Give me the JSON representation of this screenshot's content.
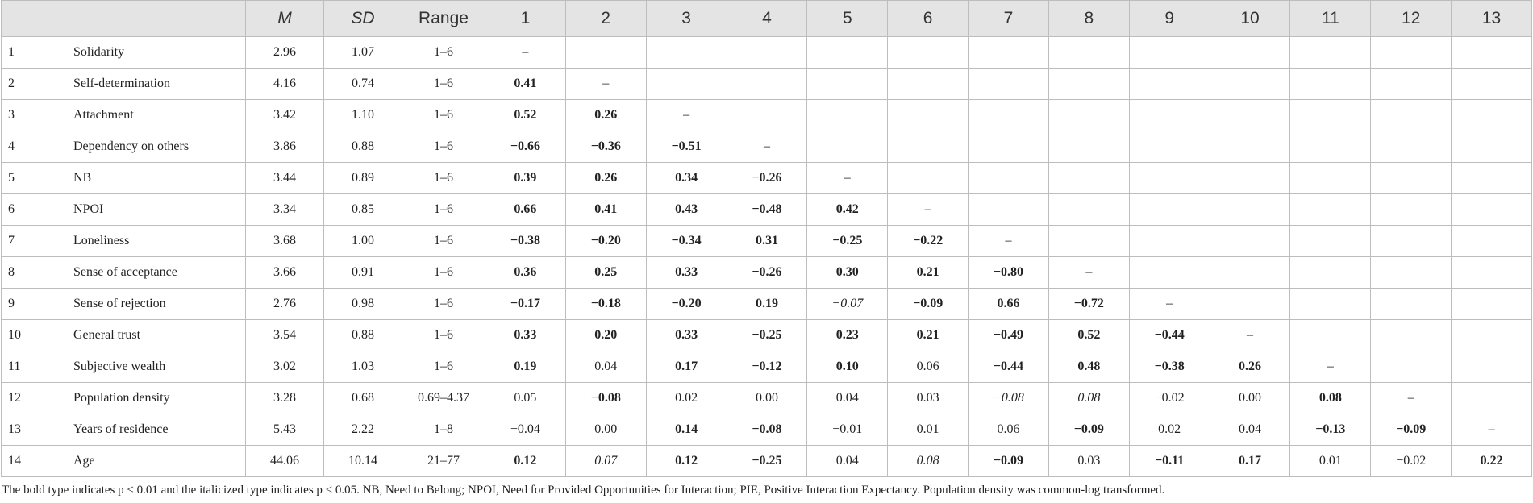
{
  "table": {
    "columns": [
      "M",
      "SD",
      "Range",
      "1",
      "2",
      "3",
      "4",
      "5",
      "6",
      "7",
      "8",
      "9",
      "10",
      "11",
      "12",
      "13"
    ],
    "italic_columns": [
      "M",
      "SD"
    ],
    "rows": [
      [
        "1",
        "Solidarity",
        "2.96",
        "1.07",
        "1–6",
        "–"
      ],
      [
        "2",
        "Self-determination",
        "4.16",
        "0.74",
        "1–6",
        {
          "text": "0.41",
          "style": "bold"
        },
        "–"
      ],
      [
        "3",
        "Attachment",
        "3.42",
        "1.10",
        "1–6",
        {
          "text": "0.52",
          "style": "bold"
        },
        {
          "text": "0.26",
          "style": "bold"
        },
        "–"
      ],
      [
        "4",
        "Dependency on others",
        "3.86",
        "0.88",
        "1–6",
        {
          "text": "−0.66",
          "style": "bold"
        },
        {
          "text": "−0.36",
          "style": "bold"
        },
        {
          "text": "−0.51",
          "style": "bold"
        },
        "–"
      ],
      [
        "5",
        "NB",
        "3.44",
        "0.89",
        "1–6",
        {
          "text": "0.39",
          "style": "bold"
        },
        {
          "text": "0.26",
          "style": "bold"
        },
        {
          "text": "0.34",
          "style": "bold"
        },
        {
          "text": "−0.26",
          "style": "bold"
        },
        "–"
      ],
      [
        "6",
        "NPOI",
        "3.34",
        "0.85",
        "1–6",
        {
          "text": "0.66",
          "style": "bold"
        },
        {
          "text": "0.41",
          "style": "bold"
        },
        {
          "text": "0.43",
          "style": "bold"
        },
        {
          "text": "−0.48",
          "style": "bold"
        },
        {
          "text": "0.42",
          "style": "bold"
        },
        "–"
      ],
      [
        "7",
        "Loneliness",
        "3.68",
        "1.00",
        "1–6",
        {
          "text": "−0.38",
          "style": "bold"
        },
        {
          "text": "−0.20",
          "style": "bold"
        },
        {
          "text": "−0.34",
          "style": "bold"
        },
        {
          "text": "0.31",
          "style": "bold"
        },
        {
          "text": "−0.25",
          "style": "bold"
        },
        {
          "text": "−0.22",
          "style": "bold"
        },
        "–"
      ],
      [
        "8",
        "Sense of acceptance",
        "3.66",
        "0.91",
        "1–6",
        {
          "text": "0.36",
          "style": "bold"
        },
        {
          "text": "0.25",
          "style": "bold"
        },
        {
          "text": "0.33",
          "style": "bold"
        },
        {
          "text": "−0.26",
          "style": "bold"
        },
        {
          "text": "0.30",
          "style": "bold"
        },
        {
          "text": "0.21",
          "style": "bold"
        },
        {
          "text": "−0.80",
          "style": "bold"
        },
        "–"
      ],
      [
        "9",
        "Sense of rejection",
        "2.76",
        "0.98",
        "1–6",
        {
          "text": "−0.17",
          "style": "bold"
        },
        {
          "text": "−0.18",
          "style": "bold"
        },
        {
          "text": "−0.20",
          "style": "bold"
        },
        {
          "text": "0.19",
          "style": "bold"
        },
        {
          "text": "−0.07",
          "style": "italic"
        },
        {
          "text": "−0.09",
          "style": "bold"
        },
        {
          "text": "0.66",
          "style": "bold"
        },
        {
          "text": "−0.72",
          "style": "bold"
        },
        "–"
      ],
      [
        "10",
        "General trust",
        "3.54",
        "0.88",
        "1–6",
        {
          "text": "0.33",
          "style": "bold"
        },
        {
          "text": "0.20",
          "style": "bold"
        },
        {
          "text": "0.33",
          "style": "bold"
        },
        {
          "text": "−0.25",
          "style": "bold"
        },
        {
          "text": "0.23",
          "style": "bold"
        },
        {
          "text": "0.21",
          "style": "bold"
        },
        {
          "text": "−0.49",
          "style": "bold"
        },
        {
          "text": "0.52",
          "style": "bold"
        },
        {
          "text": "−0.44",
          "style": "bold"
        },
        "–"
      ],
      [
        "11",
        "Subjective wealth",
        "3.02",
        "1.03",
        "1–6",
        {
          "text": "0.19",
          "style": "bold"
        },
        "0.04",
        {
          "text": "0.17",
          "style": "bold"
        },
        {
          "text": "−0.12",
          "style": "bold"
        },
        {
          "text": "0.10",
          "style": "bold"
        },
        "0.06",
        {
          "text": "−0.44",
          "style": "bold"
        },
        {
          "text": "0.48",
          "style": "bold"
        },
        {
          "text": "−0.38",
          "style": "bold"
        },
        {
          "text": "0.26",
          "style": "bold"
        },
        "–"
      ],
      [
        "12",
        "Population density",
        "3.28",
        "0.68",
        "0.69–4.37",
        "0.05",
        {
          "text": "−0.08",
          "style": "bold"
        },
        "0.02",
        "0.00",
        "0.04",
        "0.03",
        {
          "text": "−0.08",
          "style": "italic"
        },
        {
          "text": "0.08",
          "style": "italic"
        },
        "−0.02",
        "0.00",
        {
          "text": "0.08",
          "style": "bold"
        },
        "–"
      ],
      [
        "13",
        "Years of residence",
        "5.43",
        "2.22",
        "1–8",
        "−0.04",
        "0.00",
        {
          "text": "0.14",
          "style": "bold"
        },
        {
          "text": "−0.08",
          "style": "bold"
        },
        "−0.01",
        "0.01",
        "0.06",
        {
          "text": "−0.09",
          "style": "bold"
        },
        "0.02",
        "0.04",
        {
          "text": "−0.13",
          "style": "bold"
        },
        {
          "text": "−0.09",
          "style": "bold"
        },
        "–"
      ],
      [
        "14",
        "Age",
        "44.06",
        "10.14",
        "21–77",
        {
          "text": "0.12",
          "style": "bold"
        },
        {
          "text": "0.07",
          "style": "italic"
        },
        {
          "text": "0.12",
          "style": "bold"
        },
        {
          "text": "−0.25",
          "style": "bold"
        },
        "0.04",
        {
          "text": "0.08",
          "style": "italic"
        },
        {
          "text": "−0.09",
          "style": "bold"
        },
        "0.03",
        {
          "text": "−0.11",
          "style": "bold"
        },
        {
          "text": "0.17",
          "style": "bold"
        },
        "0.01",
        "−0.02",
        {
          "text": "0.22",
          "style": "bold"
        }
      ]
    ],
    "note": "The bold type indicates p < 0.01 and the italicized type indicates p < 0.05. NB, Need to Belong; NPOI, Need for Provided Opportunities for Interaction; PIE, Positive Interaction Expectancy. Population density was common-log transformed."
  }
}
